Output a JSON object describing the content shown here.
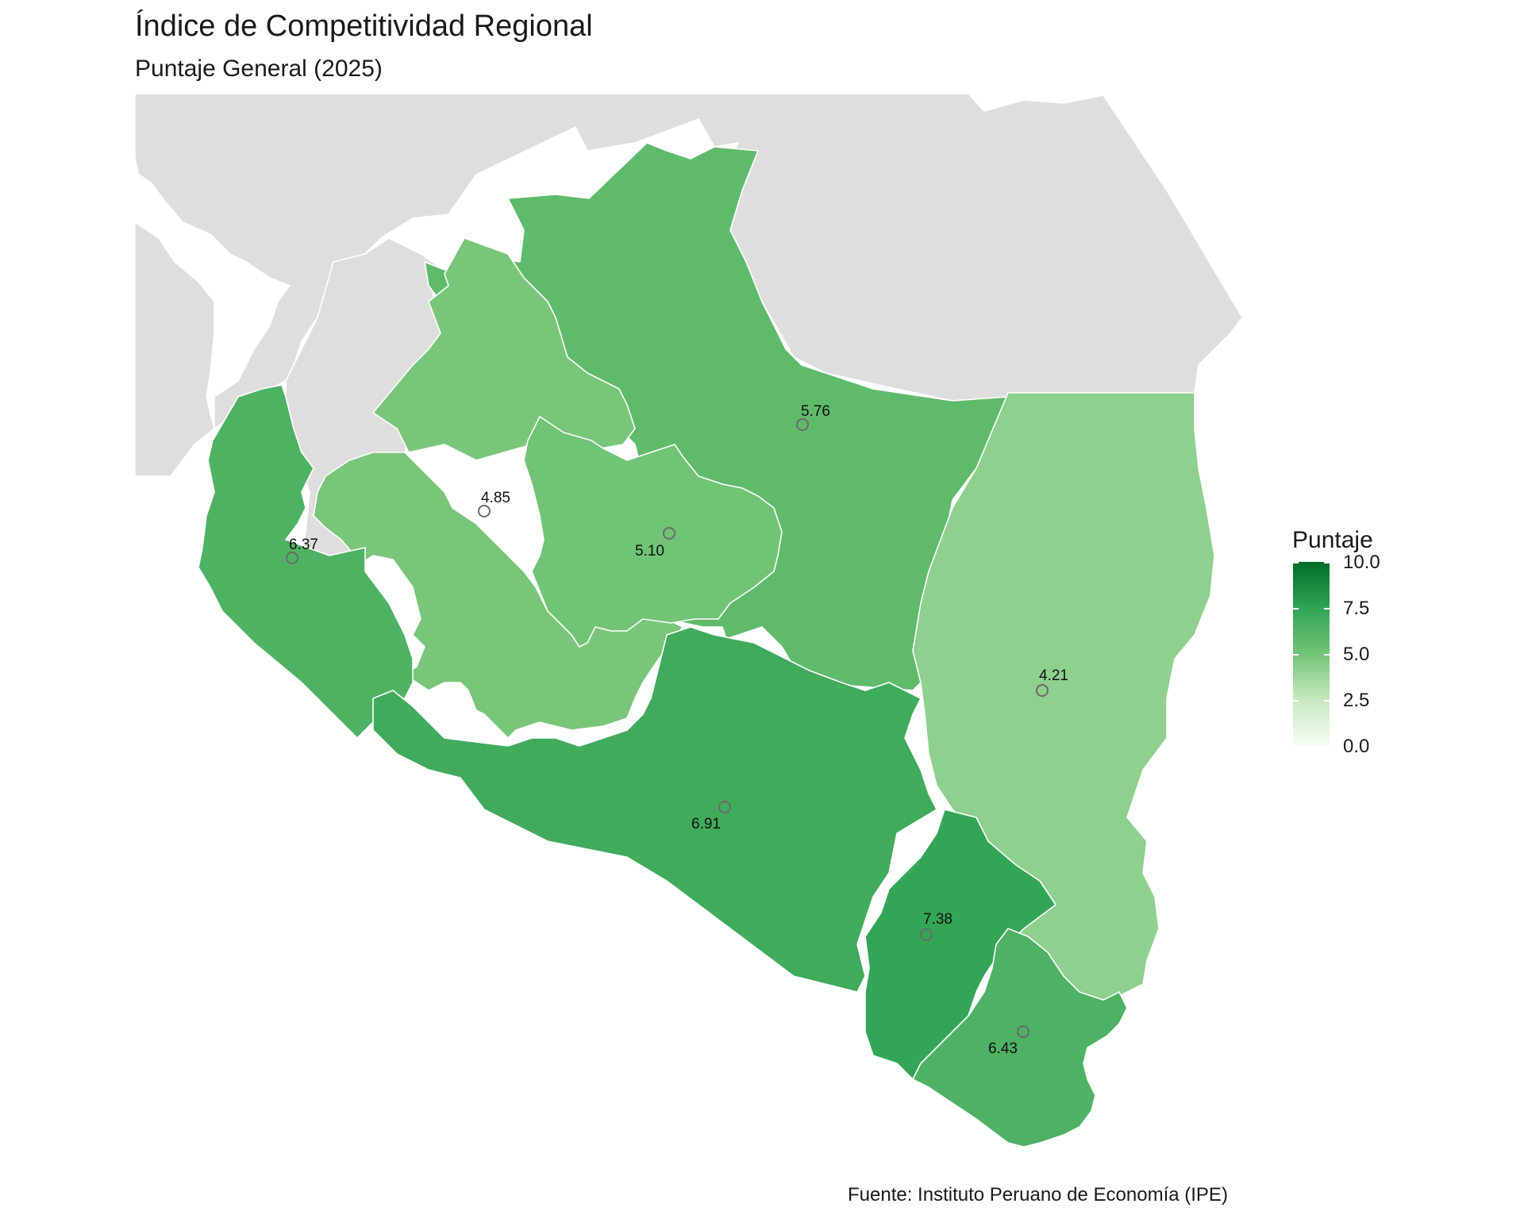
{
  "title": "Índice de Competitividad Regional",
  "subtitle": "Puntaje General (2025)",
  "caption": "Fuente: Instituto Peruano de Economía (IPE)",
  "legend": {
    "title": "Puntaje",
    "ticks": [
      "10.0",
      "7.5",
      "5.0",
      "2.5",
      "0.0"
    ],
    "scale_min": 0,
    "scale_max": 10,
    "colors": [
      "#f7fcf5",
      "#c7e9c0",
      "#74c476",
      "#31a354",
      "#006d2c"
    ]
  },
  "colors": {
    "background_region": "#dedede",
    "border": "#ffffff"
  },
  "regions": [
    {
      "id": "r1",
      "label": "6.37",
      "value": 6.37
    },
    {
      "id": "r2",
      "label": "4.85",
      "value": 4.85
    },
    {
      "id": "r3",
      "label": "5.10",
      "value": 5.1
    },
    {
      "id": "r4",
      "label": "5.76",
      "value": 5.76
    },
    {
      "id": "r5",
      "label": "4.21",
      "value": 4.21
    },
    {
      "id": "r6",
      "label": "6.91",
      "value": 6.91
    },
    {
      "id": "r7",
      "label": "7.38",
      "value": 7.38
    },
    {
      "id": "r8",
      "label": "6.43",
      "value": 6.43
    }
  ]
}
